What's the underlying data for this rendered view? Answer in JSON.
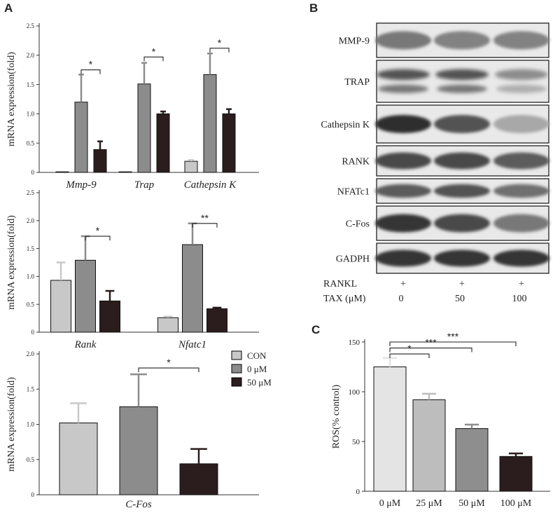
{
  "panels": {
    "A": "A",
    "B": "B",
    "C": "C"
  },
  "legend": [
    {
      "label": "CON",
      "color": "#c8c8c8"
    },
    {
      "label": "0 μM",
      "color": "#8c8c8c"
    },
    {
      "label": "50 μM",
      "color": "#2b1d1d"
    }
  ],
  "chart_data": [
    {
      "type": "bar",
      "panel": "A",
      "ylabel": "mRNA expression(fold)",
      "ylim": [
        0,
        2.5
      ],
      "yticks": [
        "0",
        "0.5",
        "1.0",
        "1.5",
        "2.0",
        "2.5"
      ],
      "italic_categories": true,
      "categories": [
        "Mmp-9",
        "Trap",
        "Cathepsin K"
      ],
      "series": [
        {
          "name": "CON",
          "color": "#c8c8c8",
          "values": [
            0.01,
            0.01,
            0.19
          ],
          "errors": [
            0,
            0,
            0.02
          ]
        },
        {
          "name": "0 μM",
          "color": "#8c8c8c",
          "values": [
            1.2,
            1.51,
            1.67
          ],
          "errors": [
            0.47,
            0.36,
            0.36
          ]
        },
        {
          "name": "50 μM",
          "color": "#2b1d1d",
          "values": [
            0.39,
            1.0,
            1.0
          ],
          "errors": [
            0.14,
            0.04,
            0.08
          ]
        }
      ],
      "significance": [
        {
          "category": "Mmp-9",
          "from": 1,
          "to": 2,
          "y": 1.75,
          "label": "*"
        },
        {
          "category": "Trap",
          "from": 1,
          "to": 2,
          "y": 1.97,
          "label": "*"
        },
        {
          "category": "Cathepsin K",
          "from": 1,
          "to": 2,
          "y": 2.12,
          "label": "*"
        }
      ]
    },
    {
      "type": "bar",
      "panel": "A",
      "ylabel": "mRNA expression(fold)",
      "ylim": [
        0,
        2.5
      ],
      "yticks": [
        "0",
        "0.5",
        "1.0",
        "1.5",
        "2.0",
        "2.5"
      ],
      "italic_categories": true,
      "categories": [
        "Rank",
        "Nfatc1"
      ],
      "series": [
        {
          "name": "CON",
          "color": "#c8c8c8",
          "values": [
            0.93,
            0.26
          ],
          "errors": [
            0.32,
            0.02
          ]
        },
        {
          "name": "0 μM",
          "color": "#8c8c8c",
          "values": [
            1.29,
            1.57
          ],
          "errors": [
            0.43,
            0.38
          ]
        },
        {
          "name": "50 μM",
          "color": "#2b1d1d",
          "values": [
            0.56,
            0.42
          ],
          "errors": [
            0.18,
            0.02
          ]
        }
      ],
      "significance": [
        {
          "category": "Rank",
          "from": 1,
          "to": 2,
          "y": 1.72,
          "label": "*"
        },
        {
          "category": "Nfatc1",
          "from": 1,
          "to": 2,
          "y": 1.95,
          "label": "**"
        }
      ]
    },
    {
      "type": "bar",
      "panel": "A",
      "ylabel": "mRNA expression(fold)",
      "ylim": [
        0,
        2.0
      ],
      "yticks": [
        "0",
        "0.5",
        "1.0",
        "1.5",
        "2.0"
      ],
      "italic_categories": true,
      "categories": [
        "C-Fos"
      ],
      "series": [
        {
          "name": "CON",
          "color": "#c8c8c8",
          "values": [
            1.02
          ],
          "errors": [
            0.28
          ]
        },
        {
          "name": "0 μM",
          "color": "#8c8c8c",
          "values": [
            1.25
          ],
          "errors": [
            0.46
          ]
        },
        {
          "name": "50 μM",
          "color": "#2b1d1d",
          "values": [
            0.44
          ],
          "errors": [
            0.21
          ]
        }
      ],
      "significance": [
        {
          "category": "C-Fos",
          "from": 1,
          "to": 2,
          "y": 1.8,
          "label": "*"
        }
      ]
    },
    {
      "type": "bar",
      "panel": "C",
      "ylabel": "ROS(% control)",
      "ylim": [
        0,
        150
      ],
      "yticks": [
        "0",
        "50",
        "100",
        "150"
      ],
      "italic_categories": false,
      "categories": [
        "0 μM",
        "25 μM",
        "50 μM",
        "100 μM"
      ],
      "series": [
        {
          "colors": [
            "#e4e4e4",
            "#bdbdbd",
            "#8e8e8e",
            "#2b1d1d"
          ],
          "values": [
            125,
            92,
            63,
            35
          ],
          "errors": [
            9,
            6,
            4,
            3
          ]
        }
      ],
      "significance": [
        {
          "from": 0,
          "to": 1,
          "y": 138,
          "label": "*"
        },
        {
          "from": 0,
          "to": 2,
          "y": 144,
          "label": "***"
        },
        {
          "from": 0,
          "to": 3,
          "y": 150,
          "label": "***"
        }
      ]
    }
  ],
  "western_blot": {
    "bands": [
      "MMP-9",
      "TRAP",
      "Cathepsin K",
      "RANK",
      "NFATc1",
      "C-Fos",
      "GADPH"
    ],
    "conditions": [
      {
        "label": "RANKL",
        "values": [
          "+",
          "+",
          "+"
        ]
      },
      {
        "label": "TAX  (μM)",
        "values": [
          "0",
          "50",
          "100"
        ]
      }
    ]
  }
}
